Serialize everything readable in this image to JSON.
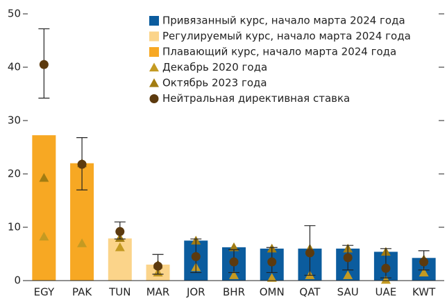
{
  "chart_data": {
    "type": "bar",
    "categories": [
      "EGY",
      "PAK",
      "TUN",
      "MAR",
      "JOR",
      "BHR",
      "OMN",
      "QAT",
      "SAU",
      "UAE",
      "KWT"
    ],
    "ylim": [
      0,
      50
    ],
    "yticks": [
      0,
      10,
      20,
      30,
      40,
      50
    ],
    "series": [
      {
        "name": "Привязанный курс, начало марта 2024 года",
        "marker": "bar",
        "color": "#0b5c9e",
        "values": [
          null,
          null,
          null,
          null,
          7.5,
          6.25,
          6,
          6,
          6,
          5.4,
          4.25
        ]
      },
      {
        "name": "Регулируемый курс, начало марта 2024 года",
        "marker": "bar",
        "color": "#fbd48a",
        "values": [
          null,
          null,
          7.9,
          3,
          null,
          null,
          null,
          null,
          null,
          null,
          null
        ]
      },
      {
        "name": "Плавающий курс, начало марта 2024 года",
        "marker": "bar",
        "color": "#f7a823",
        "values": [
          27.25,
          22,
          null,
          null,
          null,
          null,
          null,
          null,
          null,
          null,
          null
        ]
      },
      {
        "name": "Декабрь 2020 года",
        "marker": "triangle",
        "color": "#c49a22",
        "values": [
          8.25,
          7,
          6.25,
          1.5,
          2.5,
          1,
          0.5,
          1,
          1,
          0.15,
          1.5
        ]
      },
      {
        "name": "Октябрь 2023 года",
        "marker": "triangle",
        "color": "#a27c12",
        "values": [
          19.25,
          22,
          8,
          3,
          7.5,
          6.25,
          6,
          6,
          6,
          5.4,
          4
        ]
      },
      {
        "name": "Нейтральная директивная ставка",
        "marker": "circle",
        "color": "#5c3a0e",
        "values": [
          40.5,
          21.8,
          9.2,
          2.7,
          4.5,
          3.5,
          3.5,
          5.2,
          4.3,
          2.3,
          3.5
        ],
        "error_low": [
          34.2,
          17,
          7.8,
          1.2,
          1.5,
          1.5,
          1.5,
          1,
          2,
          0.5,
          2
        ],
        "error_high": [
          47.2,
          26.8,
          11,
          4.9,
          7.8,
          5.8,
          6.2,
          10.3,
          6.6,
          6,
          5.6
        ]
      }
    ]
  }
}
